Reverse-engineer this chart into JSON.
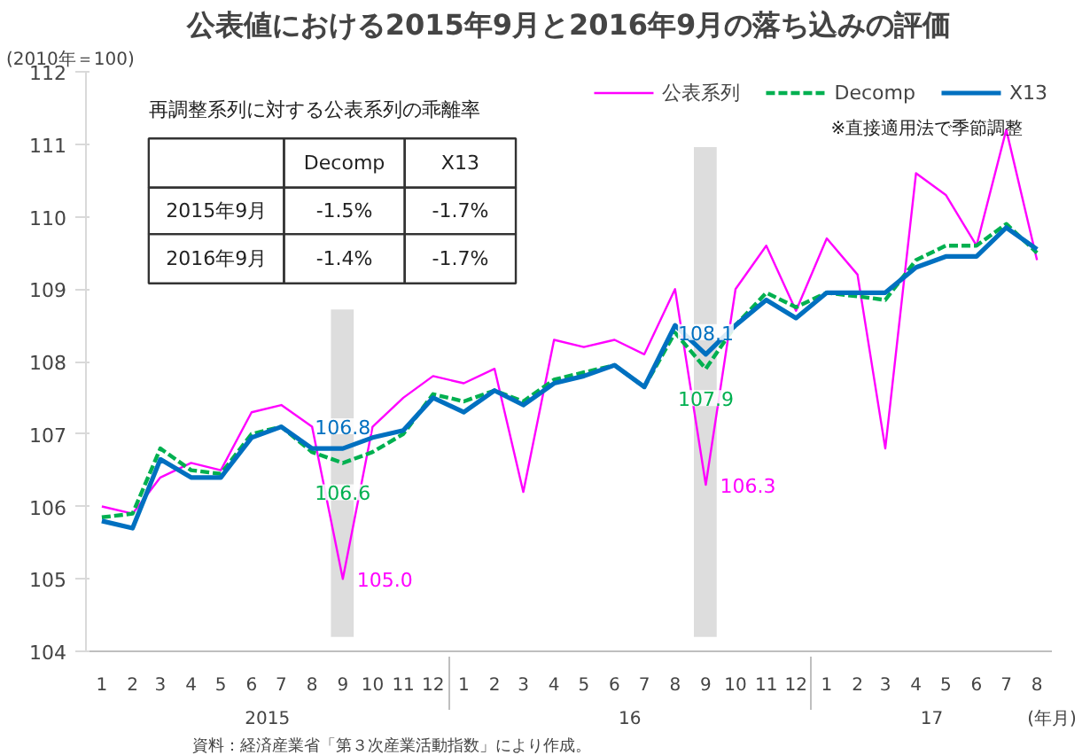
{
  "chart_data": {
    "type": "line",
    "title": "公表値における2015年9月と2016年9月の落ち込みの評価",
    "ylabel": "(2010年＝100)",
    "xlabel": "(年月)",
    "x": [
      "2015-01",
      "2015-02",
      "2015-03",
      "2015-04",
      "2015-05",
      "2015-06",
      "2015-07",
      "2015-08",
      "2015-09",
      "2015-10",
      "2015-11",
      "2015-12",
      "2016-01",
      "2016-02",
      "2016-03",
      "2016-04",
      "2016-05",
      "2016-06",
      "2016-07",
      "2016-08",
      "2016-09",
      "2016-10",
      "2016-11",
      "2016-12",
      "2017-01",
      "2017-02",
      "2017-03",
      "2017-04",
      "2017-05",
      "2017-06",
      "2017-07",
      "2017-08"
    ],
    "xlim": [
      "2014-12-16",
      "2017-08-16"
    ],
    "xticks": [
      {
        "value": "2015-01",
        "label": "1"
      },
      {
        "value": "2015-02",
        "label": "2"
      },
      {
        "value": "2015-03",
        "label": "3"
      },
      {
        "value": "2015-04",
        "label": "4"
      },
      {
        "value": "2015-05",
        "label": "5"
      },
      {
        "value": "2015-06",
        "label": "6"
      },
      {
        "value": "2015-07",
        "label": "7"
      },
      {
        "value": "2015-08",
        "label": "8"
      },
      {
        "value": "2015-09",
        "label": "9"
      },
      {
        "value": "2015-10",
        "label": "10"
      },
      {
        "value": "2015-11",
        "label": "11"
      },
      {
        "value": "2015-12",
        "label": "12"
      },
      {
        "value": "2016-01",
        "label": "1"
      },
      {
        "value": "2016-02",
        "label": "2"
      },
      {
        "value": "2016-03",
        "label": "3"
      },
      {
        "value": "2016-04",
        "label": "4"
      },
      {
        "value": "2016-05",
        "label": "5"
      },
      {
        "value": "2016-06",
        "label": "6"
      },
      {
        "value": "2016-07",
        "label": "7"
      },
      {
        "value": "2016-08",
        "label": "8"
      },
      {
        "value": "2016-09",
        "label": "9"
      },
      {
        "value": "2016-10",
        "label": "10"
      },
      {
        "value": "2016-11",
        "label": "11"
      },
      {
        "value": "2016-12",
        "label": "12"
      },
      {
        "value": "2017-01",
        "label": "1"
      },
      {
        "value": "2017-02",
        "label": "2"
      },
      {
        "value": "2017-03",
        "label": "3"
      },
      {
        "value": "2017-04",
        "label": "4"
      },
      {
        "value": "2017-05",
        "label": "5"
      },
      {
        "value": "2017-06",
        "label": "6"
      },
      {
        "value": "2017-07",
        "label": "7"
      },
      {
        "value": "2017-08",
        "label": "8"
      }
    ],
    "series": [
      {
        "name": "公表系列",
        "color": "#ff00ff",
        "line_style": "solid",
        "values": [
          106.0,
          105.9,
          106.4,
          106.6,
          106.5,
          107.3,
          107.4,
          107.1,
          105.0,
          107.1,
          107.5,
          107.8,
          107.7,
          107.9,
          106.2,
          108.3,
          108.2,
          108.3,
          108.1,
          109.0,
          106.3,
          109.0,
          109.6,
          108.7,
          109.7,
          109.2,
          106.8,
          110.6,
          110.3,
          109.6,
          111.2,
          109.4
        ],
        "value_labels": [
          null,
          null,
          null,
          null,
          null,
          null,
          null,
          null,
          "105.0",
          null,
          null,
          null,
          null,
          null,
          null,
          null,
          null,
          null,
          null,
          null,
          "106.3",
          null,
          null,
          null,
          null,
          null,
          null,
          null,
          null,
          null,
          null,
          null
        ]
      },
      {
        "name": "Decomp",
        "color": "#00b050",
        "line_style": "dashed",
        "values": [
          105.85,
          105.9,
          106.8,
          106.5,
          106.45,
          107.0,
          107.1,
          106.75,
          106.6,
          106.75,
          107.0,
          107.55,
          107.45,
          107.6,
          107.45,
          107.75,
          107.85,
          107.95,
          107.65,
          108.4,
          107.9,
          108.5,
          108.95,
          108.75,
          108.95,
          108.9,
          108.85,
          109.4,
          109.6,
          109.6,
          109.9,
          109.5
        ],
        "value_labels": [
          null,
          null,
          null,
          null,
          null,
          null,
          null,
          null,
          "106.6",
          null,
          null,
          null,
          null,
          null,
          null,
          null,
          null,
          null,
          null,
          null,
          "107.9",
          null,
          null,
          null,
          null,
          null,
          null,
          null,
          null,
          null,
          null,
          null
        ]
      },
      {
        "name": "X13",
        "color": "#0070c0",
        "line_style": "solid",
        "values": [
          105.8,
          105.7,
          106.65,
          106.4,
          106.4,
          106.95,
          107.1,
          106.8,
          106.8,
          106.95,
          107.05,
          107.5,
          107.3,
          107.6,
          107.4,
          107.7,
          107.8,
          107.95,
          107.65,
          108.5,
          108.1,
          108.5,
          108.85,
          108.6,
          108.95,
          108.95,
          108.95,
          109.3,
          109.45,
          109.45,
          109.85,
          109.55
        ],
        "value_labels": [
          null,
          null,
          null,
          null,
          null,
          null,
          null,
          null,
          "106.8",
          null,
          null,
          null,
          null,
          null,
          null,
          null,
          null,
          null,
          null,
          null,
          "108.1",
          null,
          null,
          null,
          null,
          null,
          null,
          null,
          null,
          null,
          null,
          null
        ]
      }
    ],
    "ylim": [
      104,
      112
    ],
    "yticks": [
      104,
      105,
      106,
      107,
      108,
      109,
      110,
      111,
      112
    ],
    "grid": false,
    "legend": "top right",
    "marker": "none",
    "bands": [
      {
        "axis": "x",
        "from": "2015-08-20",
        "to": "2015-09-12",
        "color": "#d9d9d9"
      },
      {
        "axis": "x",
        "from": "2016-08-20",
        "to": "2016-09-12",
        "color": "#d9d9d9"
      }
    ],
    "annotations": [
      "再調整系列に対する公表系列の乖離率",
      "Decomp",
      "X13",
      "2015年9月",
      "-1.5%",
      "-1.7%",
      "2016年9月",
      "-1.4%",
      "-1.7%",
      "※直接適用法で季節調整",
      "資料：経済産業省「第３次産業活動指数」により作成。",
      "2015",
      "16",
      "17"
    ]
  }
}
